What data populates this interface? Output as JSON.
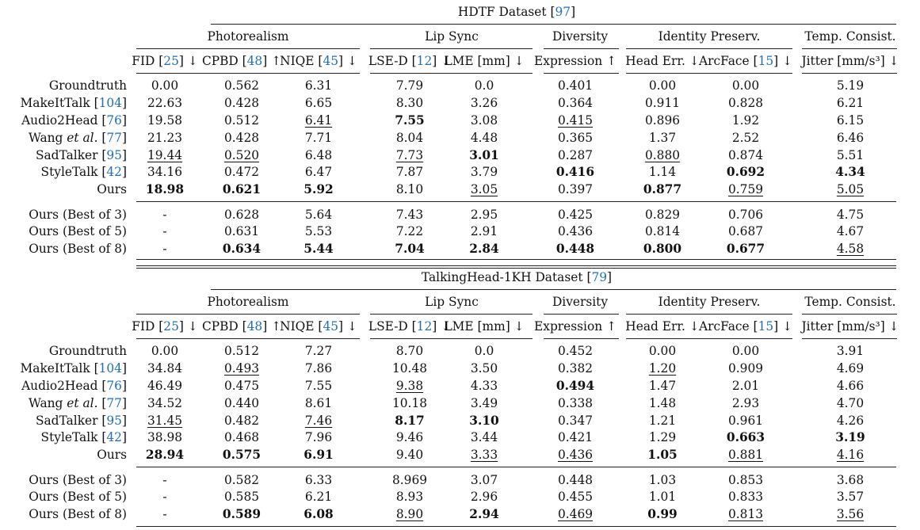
{
  "columns": {
    "groups": [
      "Photorealism",
      "Lip Sync",
      "Diversity",
      "Identity Preserv.",
      "Temp. Consist."
    ],
    "metrics": [
      {
        "name": "FID",
        "cite": "25",
        "arrow": "↓"
      },
      {
        "name": "CPBD",
        "cite": "48",
        "arrow": "↑"
      },
      {
        "name": "NIQE",
        "cite": "45",
        "arrow": "↓"
      },
      {
        "name": "LSE-D",
        "cite": "12",
        "arrow": "↓"
      },
      {
        "name": "LME [mm]",
        "cite": "",
        "arrow": "↓"
      },
      {
        "name": "Expression",
        "cite": "",
        "arrow": "↑"
      },
      {
        "name": "Head Err.",
        "cite": "",
        "arrow": "↓"
      },
      {
        "name": "ArcFace",
        "cite": "15",
        "arrow": "↓"
      },
      {
        "name": "Jitter [mm/s³]",
        "cite": "",
        "arrow": "↓"
      }
    ]
  },
  "tables": [
    {
      "title": "HDTF Dataset",
      "title_cite": "97",
      "rows": [
        {
          "method": "Groundtruth",
          "cite": "",
          "values": [
            "0.00",
            "0.562",
            "6.31",
            "7.79",
            "0.0",
            "0.401",
            "0.00",
            "0.00",
            "5.19"
          ],
          "bold": [],
          "underline": []
        },
        {
          "method": "MakeItTalk",
          "cite": "104",
          "values": [
            "22.63",
            "0.428",
            "6.65",
            "8.30",
            "3.26",
            "0.364",
            "0.911",
            "0.828",
            "6.21"
          ],
          "bold": [],
          "underline": []
        },
        {
          "method": "Audio2Head",
          "cite": "76",
          "values": [
            "19.58",
            "0.512",
            "6.41",
            "7.55",
            "3.08",
            "0.415",
            "0.896",
            "1.92",
            "6.15"
          ],
          "bold": [
            3
          ],
          "underline": [
            2,
            5
          ]
        },
        {
          "method": "Wang et al.",
          "cite": "77",
          "values": [
            "21.23",
            "0.428",
            "7.71",
            "8.04",
            "4.48",
            "0.365",
            "1.37",
            "2.52",
            "6.46"
          ],
          "bold": [],
          "underline": []
        },
        {
          "method": "SadTalker",
          "cite": "95",
          "values": [
            "19.44",
            "0.520",
            "6.48",
            "7.73",
            "3.01",
            "0.287",
            "0.880",
            "0.874",
            "5.51"
          ],
          "bold": [
            4
          ],
          "underline": [
            0,
            1,
            3,
            6
          ]
        },
        {
          "method": "StyleTalk",
          "cite": "42",
          "values": [
            "34.16",
            "0.472",
            "6.47",
            "7.87",
            "3.79",
            "0.416",
            "1.14",
            "0.692",
            "4.34"
          ],
          "bold": [
            5,
            7,
            8
          ],
          "underline": []
        },
        {
          "method": "Ours",
          "cite": "",
          "values": [
            "18.98",
            "0.621",
            "5.92",
            "8.10",
            "3.05",
            "0.397",
            "0.877",
            "0.759",
            "5.05"
          ],
          "bold": [
            0,
            1,
            2,
            6
          ],
          "underline": [
            4,
            7,
            8
          ]
        },
        {
          "method": "Ours (Best of 3)",
          "cite": "",
          "values": [
            "-",
            "0.628",
            "5.64",
            "7.43",
            "2.95",
            "0.425",
            "0.829",
            "0.706",
            "4.75"
          ],
          "bold": [],
          "underline": []
        },
        {
          "method": "Ours (Best of 5)",
          "cite": "",
          "values": [
            "-",
            "0.631",
            "5.53",
            "7.22",
            "2.91",
            "0.436",
            "0.814",
            "0.687",
            "4.67"
          ],
          "bold": [],
          "underline": []
        },
        {
          "method": "Ours (Best of 8)",
          "cite": "",
          "values": [
            "-",
            "0.634",
            "5.44",
            "7.04",
            "2.84",
            "0.448",
            "0.800",
            "0.677",
            "4.58"
          ],
          "bold": [
            1,
            2,
            3,
            4,
            5,
            6,
            7
          ],
          "underline": [
            8
          ]
        }
      ]
    },
    {
      "title": "TalkingHead-1KH Dataset",
      "title_cite": "79",
      "rows": [
        {
          "method": "Groundtruth",
          "cite": "",
          "values": [
            "0.00",
            "0.512",
            "7.27",
            "8.70",
            "0.0",
            "0.452",
            "0.00",
            "0.00",
            "3.91"
          ],
          "bold": [],
          "underline": []
        },
        {
          "method": "MakeItTalk",
          "cite": "104",
          "values": [
            "34.84",
            "0.493",
            "7.86",
            "10.48",
            "3.50",
            "0.382",
            "1.20",
            "0.909",
            "4.69"
          ],
          "bold": [],
          "underline": [
            1,
            6
          ]
        },
        {
          "method": "Audio2Head",
          "cite": "76",
          "values": [
            "46.49",
            "0.475",
            "7.55",
            "9.38",
            "4.33",
            "0.494",
            "1.47",
            "2.01",
            "4.66"
          ],
          "bold": [
            5
          ],
          "underline": [
            3
          ]
        },
        {
          "method": "Wang et al.",
          "cite": "77",
          "values": [
            "34.52",
            "0.440",
            "8.61",
            "10.18",
            "3.49",
            "0.338",
            "1.48",
            "2.93",
            "4.70"
          ],
          "bold": [],
          "underline": []
        },
        {
          "method": "SadTalker",
          "cite": "95",
          "values": [
            "31.45",
            "0.482",
            "7.46",
            "8.17",
            "3.10",
            "0.347",
            "1.21",
            "0.961",
            "4.26"
          ],
          "bold": [
            3,
            4
          ],
          "underline": [
            0,
            2
          ]
        },
        {
          "method": "StyleTalk",
          "cite": "42",
          "values": [
            "38.98",
            "0.468",
            "7.96",
            "9.46",
            "3.44",
            "0.421",
            "1.29",
            "0.663",
            "3.19"
          ],
          "bold": [
            7,
            8
          ],
          "underline": []
        },
        {
          "method": "Ours",
          "cite": "",
          "values": [
            "28.94",
            "0.575",
            "6.91",
            "9.40",
            "3.33",
            "0.436",
            "1.05",
            "0.881",
            "4.16"
          ],
          "bold": [
            0,
            1,
            2,
            6
          ],
          "underline": [
            4,
            5,
            7,
            8
          ]
        },
        {
          "method": "Ours (Best of 3)",
          "cite": "",
          "values": [
            "-",
            "0.582",
            "6.33",
            "8.969",
            "3.07",
            "0.448",
            "1.03",
            "0.853",
            "3.68"
          ],
          "bold": [],
          "underline": []
        },
        {
          "method": "Ours (Best of 5)",
          "cite": "",
          "values": [
            "-",
            "0.585",
            "6.21",
            "8.93",
            "2.96",
            "0.455",
            "1.01",
            "0.833",
            "3.57"
          ],
          "bold": [],
          "underline": []
        },
        {
          "method": "Ours (Best of 8)",
          "cite": "",
          "values": [
            "-",
            "0.589",
            "6.08",
            "8.90",
            "2.94",
            "0.469",
            "0.99",
            "0.813",
            "3.56"
          ],
          "bold": [
            1,
            2,
            4,
            6
          ],
          "underline": [
            3,
            5,
            7,
            8
          ]
        }
      ]
    }
  ]
}
